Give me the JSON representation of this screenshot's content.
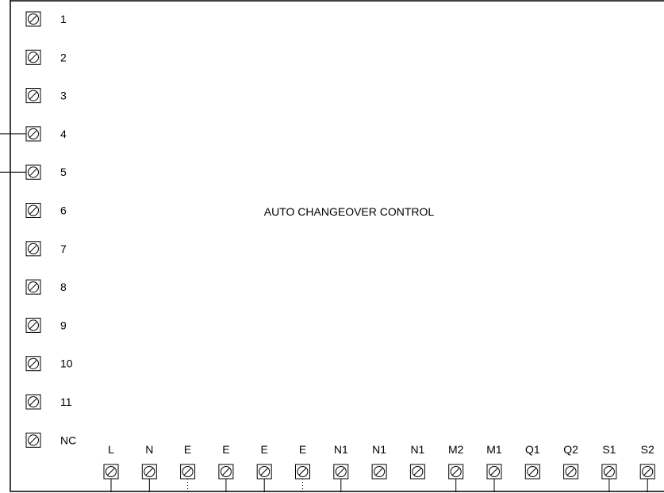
{
  "panel": {
    "title": "AUTO CHANGEOVER CONTROL"
  },
  "left_terminals": [
    {
      "label": "1",
      "wired": false
    },
    {
      "label": "2",
      "wired": false
    },
    {
      "label": "3",
      "wired": false
    },
    {
      "label": "4",
      "wired": true
    },
    {
      "label": "5",
      "wired": true
    },
    {
      "label": "6",
      "wired": false
    },
    {
      "label": "7",
      "wired": false
    },
    {
      "label": "8",
      "wired": false
    },
    {
      "label": "9",
      "wired": false
    },
    {
      "label": "10",
      "wired": false
    },
    {
      "label": "11",
      "wired": false
    },
    {
      "label": "NC",
      "wired": false
    }
  ],
  "bottom_terminals": [
    {
      "label": "L",
      "wire": "solid"
    },
    {
      "label": "N",
      "wire": "solid"
    },
    {
      "label": "E",
      "wire": "dotted"
    },
    {
      "label": "E",
      "wire": "solid"
    },
    {
      "label": "E",
      "wire": "solid"
    },
    {
      "label": "E",
      "wire": "dotted"
    },
    {
      "label": "N1",
      "wire": "solid"
    },
    {
      "label": "N1",
      "wire": "none"
    },
    {
      "label": "N1",
      "wire": "none"
    },
    {
      "label": "M2",
      "wire": "solid"
    },
    {
      "label": "M1",
      "wire": "solid"
    },
    {
      "label": "Q1",
      "wire": "none"
    },
    {
      "label": "Q2",
      "wire": "none"
    },
    {
      "label": "S1",
      "wire": "solid"
    },
    {
      "label": "S2",
      "wire": "solid"
    }
  ],
  "terminal_icon": "screw-terminal-icon"
}
